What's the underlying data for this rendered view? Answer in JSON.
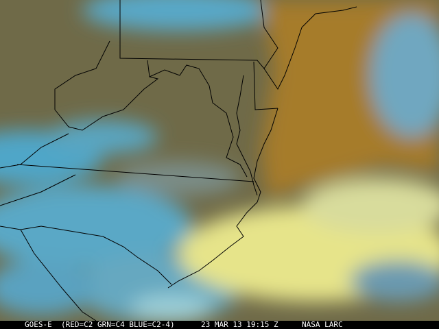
{
  "caption": {
    "satellite": "GOES-E",
    "channels": "(RED=C2 GRN=C4 BLUE=C2-4)",
    "datetime": "23 MAR 13 19:15 Z",
    "source": "NASA LARC"
  },
  "colors": {
    "land_cloudfree": "#6f6a48",
    "ocean_clear": "#a67c2c",
    "low_cloud": "#4fa6c8",
    "high_cloud": "#e6e48a",
    "borders": "#000000"
  }
}
